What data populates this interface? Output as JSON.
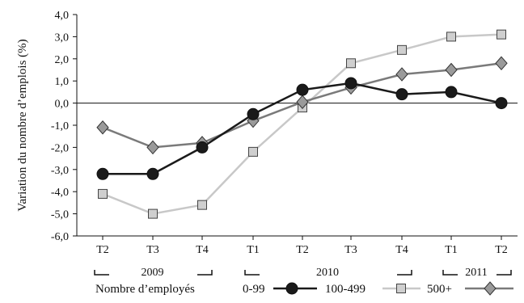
{
  "chart_data": {
    "type": "line",
    "ylabel": "Variation du nombre d’emplois (%)",
    "ylim": [
      -6,
      4
    ],
    "yticks": [
      4,
      3,
      2,
      1,
      0,
      -1,
      -2,
      -3,
      -4,
      -5,
      -6
    ],
    "ytick_labels": [
      "4,0",
      "3,0",
      "2,0",
      "1,0",
      "0,0",
      "-1,0",
      "-2,0",
      "-3,0",
      "-4,0",
      "-5,0",
      "-6,0"
    ],
    "categories": [
      "T2",
      "T3",
      "T4",
      "T1",
      "T2",
      "T3",
      "T4",
      "T1",
      "T2"
    ],
    "year_groups": [
      {
        "label": "2009",
        "start": 0,
        "end": 2
      },
      {
        "label": "2010",
        "start": 3,
        "end": 6
      },
      {
        "label": "2011",
        "start": 7,
        "end": 8
      }
    ],
    "legend_title": "Nombre d’employés",
    "legend_position": "bottom",
    "grid": false,
    "series": [
      {
        "name": "0-99",
        "marker": "circle",
        "line_color": "#1a1a1a",
        "marker_fill": "#1a1a1a",
        "values": [
          -3.2,
          -3.2,
          -2.0,
          -0.5,
          0.6,
          0.9,
          0.4,
          0.5,
          0.0
        ]
      },
      {
        "name": "100-499",
        "marker": "square",
        "line_color": "#c8c8c8",
        "marker_fill": "#cfcfcf",
        "values": [
          -4.1,
          -5.0,
          -4.6,
          -2.2,
          -0.2,
          1.8,
          2.4,
          3.0,
          3.1
        ]
      },
      {
        "name": "500+",
        "marker": "diamond",
        "line_color": "#7a7a7a",
        "marker_fill": "#9a9a9a",
        "values": [
          -1.1,
          -2.0,
          -1.8,
          -0.8,
          0.05,
          0.7,
          1.3,
          1.5,
          1.8
        ]
      }
    ]
  }
}
